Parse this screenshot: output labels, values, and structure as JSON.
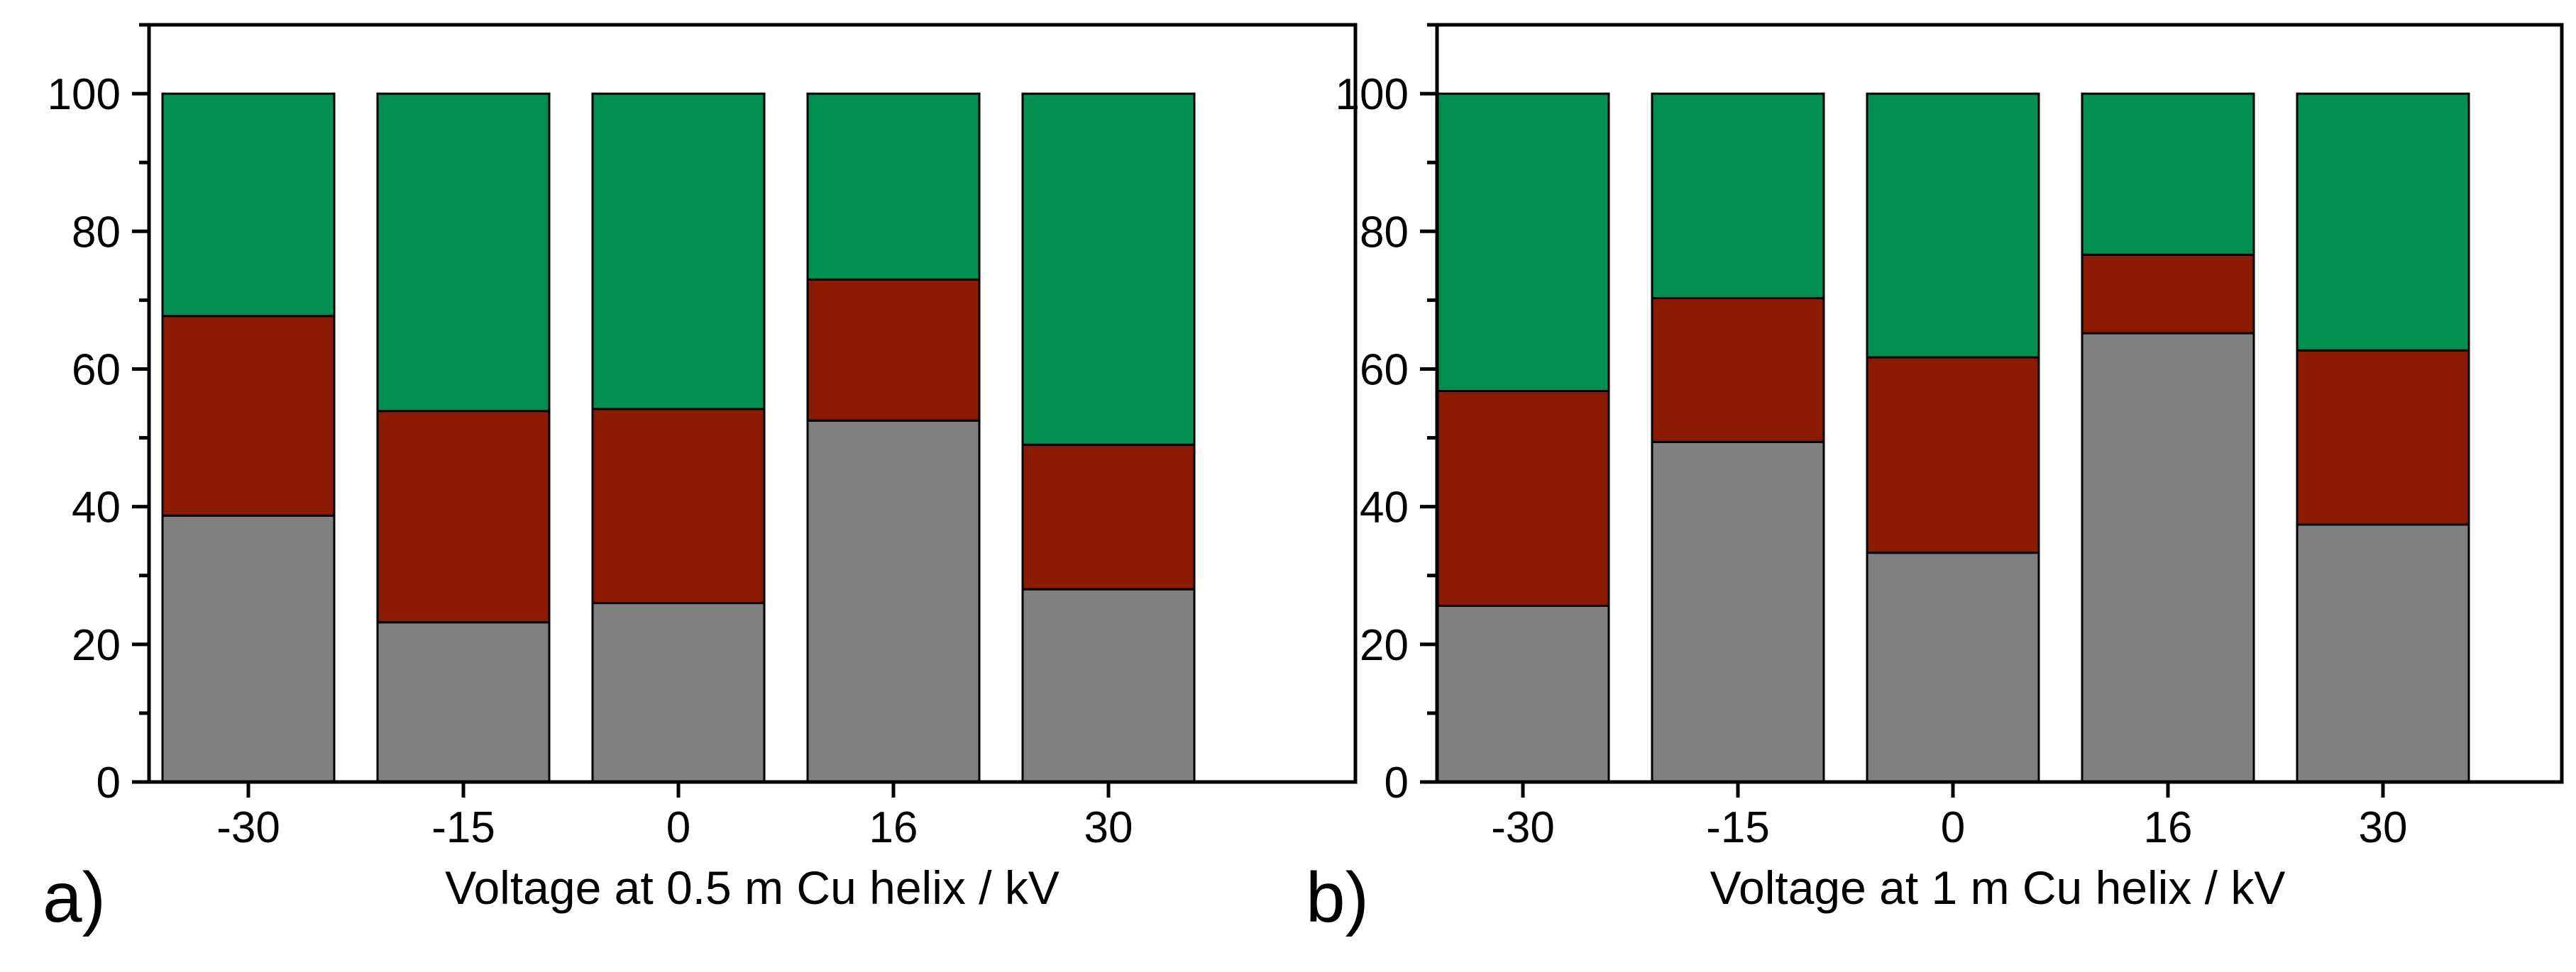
{
  "colors": {
    "gray": "#808080",
    "red": "#8b1a02",
    "green": "#008f50",
    "axis": "#000000",
    "background": "#ffffff"
  },
  "chart_data": [
    {
      "type": "bar",
      "stacked": true,
      "panel_label": "a)",
      "title": "",
      "xlabel": "Voltage at 0.5 m Cu helix / kV",
      "ylabel": "",
      "categories": [
        "-30",
        "-15",
        "0",
        "16",
        "30"
      ],
      "ylim": [
        0,
        110
      ],
      "yticks": [
        "0",
        "20",
        "40",
        "60",
        "80",
        "100"
      ],
      "series": [
        {
          "name": "gray",
          "color": "#808080",
          "values": [
            38.7,
            23.2,
            26.0,
            52.5,
            28.0
          ]
        },
        {
          "name": "red",
          "color": "#8b1a02",
          "values": [
            29.0,
            30.7,
            28.2,
            20.5,
            21.0
          ]
        },
        {
          "name": "green",
          "color": "#008f50",
          "values": [
            32.3,
            46.1,
            45.8,
            27.0,
            51.0
          ]
        }
      ]
    },
    {
      "type": "bar",
      "stacked": true,
      "panel_label": "b)",
      "title": "",
      "xlabel": "Voltage at 1 m Cu helix / kV",
      "ylabel": "",
      "categories": [
        "-30",
        "-15",
        "0",
        "16",
        "30"
      ],
      "ylim": [
        0,
        110
      ],
      "yticks": [
        "0",
        "20",
        "40",
        "60",
        "80",
        "100"
      ],
      "series": [
        {
          "name": "gray",
          "color": "#808080",
          "values": [
            25.6,
            49.4,
            33.3,
            65.2,
            37.4
          ]
        },
        {
          "name": "red",
          "color": "#8b1a02",
          "values": [
            31.2,
            20.9,
            28.4,
            11.4,
            25.3
          ]
        },
        {
          "name": "green",
          "color": "#008f50",
          "values": [
            43.2,
            29.7,
            38.3,
            23.4,
            37.3
          ]
        }
      ]
    }
  ]
}
